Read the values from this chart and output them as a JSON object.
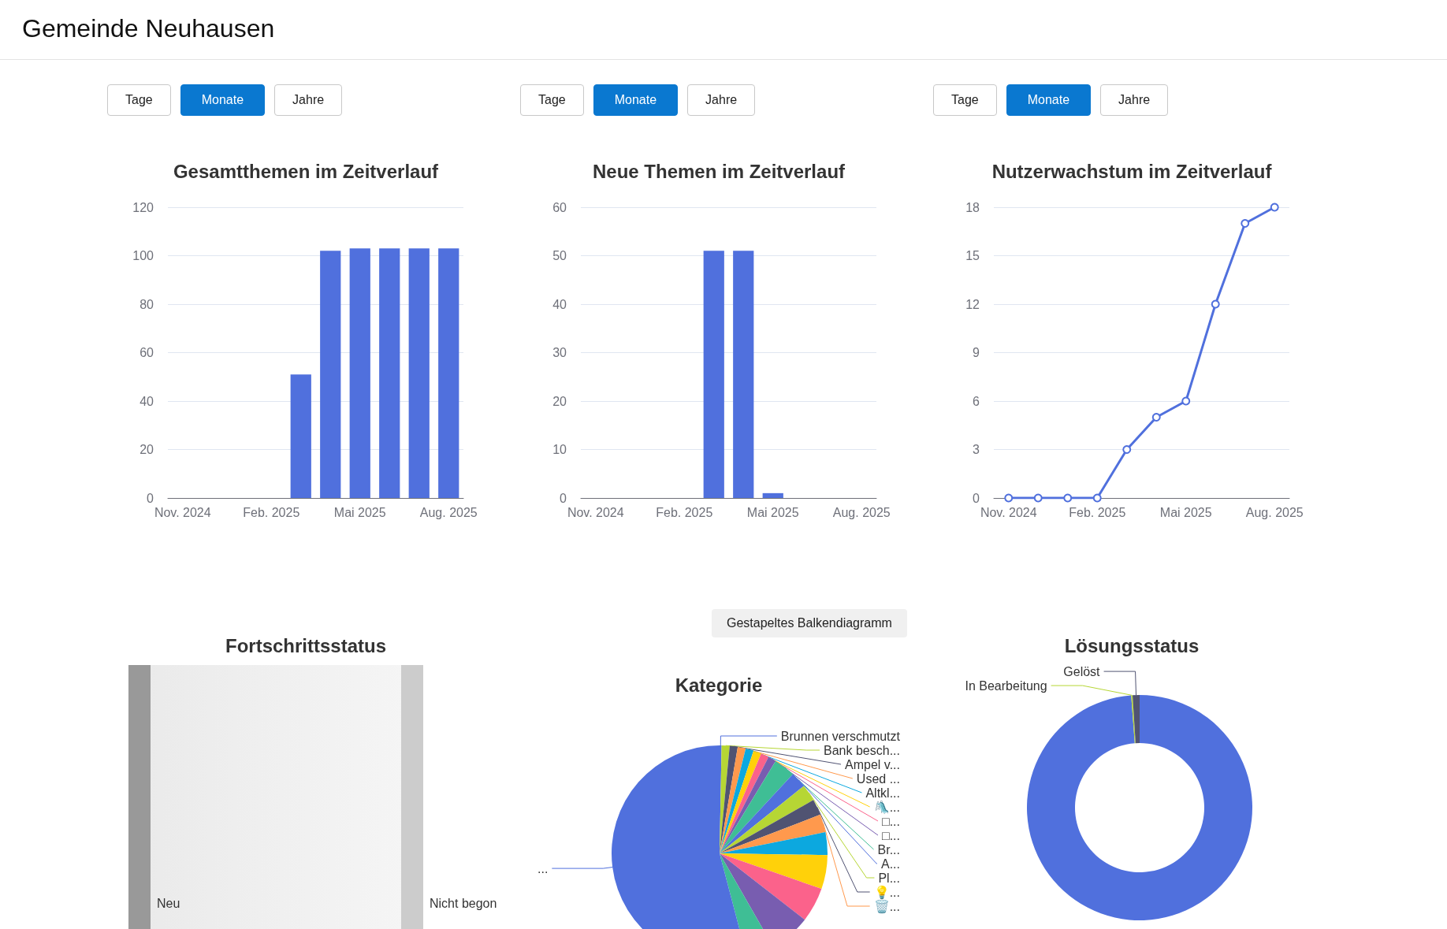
{
  "chart_data": [
    {
      "type": "other",
      "title": "Gemeinde Neuhausen"
    },
    {
      "type": "bar",
      "title": "Gesamtthemen im Zeitverlauf",
      "categories": [
        "Nov. 2024",
        null,
        null,
        "Feb. 2025",
        null,
        null,
        "Mai 2025",
        null,
        null,
        "Aug. 2025"
      ],
      "values": [
        0,
        0,
        0,
        0,
        51,
        102,
        103,
        103,
        103,
        103
      ],
      "color": "#5070dd",
      "ylim": [
        0,
        120
      ],
      "yticks": [
        0,
        20,
        40,
        60,
        80,
        100,
        120
      ],
      "grid": "y",
      "annotations": [
        "Tage",
        "Monate",
        "Jahre"
      ]
    },
    {
      "type": "bar",
      "title": "Neue Themen im Zeitverlauf",
      "categories": [
        "Nov. 2024",
        null,
        null,
        "Feb. 2025",
        null,
        null,
        "Mai 2025",
        null,
        null,
        "Aug. 2025"
      ],
      "values": [
        0,
        0,
        0,
        0,
        51,
        51,
        1,
        0,
        0,
        0
      ],
      "color": "#5070dd",
      "ylim": [
        0,
        60
      ],
      "yticks": [
        0,
        10,
        20,
        30,
        40,
        50,
        60
      ],
      "grid": "y",
      "annotations": [
        "Tage",
        "Monate",
        "Jahre"
      ]
    },
    {
      "type": "line",
      "title": "Nutzerwachstum im Zeitverlauf",
      "categories": [
        "Nov. 2024",
        null,
        null,
        "Feb. 2025",
        null,
        null,
        "Mai 2025",
        null,
        null,
        "Aug. 2025"
      ],
      "values": [
        0,
        0,
        0,
        0,
        3,
        5,
        6,
        12,
        17,
        18
      ],
      "color": "#5070dd",
      "ylim": [
        0,
        18
      ],
      "yticks": [
        0,
        3,
        6,
        9,
        12,
        15,
        18
      ],
      "grid": "y",
      "marker": "circle",
      "annotations": [
        "Tage",
        "Monate",
        "Jahre"
      ]
    },
    {
      "type": "other",
      "title": "Fortschrittsstatus",
      "categories": [
        "Neu",
        "Nicht begon"
      ],
      "colors": [
        "#999999",
        "#cccccc"
      ]
    },
    {
      "type": "pie",
      "title": "Kategorie",
      "categories": [
        "Brunnen verschmutzt",
        "Bank besch...",
        "Ampel v...",
        "Used ...",
        "Altkl...",
        "🛝...",
        "□...",
        "□...",
        "Br...",
        "A...",
        "Pl...",
        "💡...",
        "🗑️...",
        null,
        null,
        null,
        null,
        null,
        "..."
      ],
      "values": [
        0.3,
        1.2,
        1.2,
        1.2,
        1.2,
        1.2,
        1.2,
        1.2,
        3.2,
        2.4,
        2.5,
        2.4,
        2.7,
        3.4,
        5.1,
        5.2,
        6.2,
        4.2,
        54.2
      ],
      "colors": [
        "#5070dd",
        "#b6d634",
        "#505372",
        "#ff994d",
        "#0ca8df",
        "#ffd10a",
        "#fb628b",
        "#785db0",
        "#3fbe95",
        "#5070dd",
        "#b6d634",
        "#505372",
        "#ff994d",
        "#0ca8df",
        "#ffd10a",
        "#fb628b",
        "#785db0",
        "#3fbe95",
        "#5070dd"
      ],
      "annotations": [
        "Gestapeltes Balkendiagramm"
      ]
    },
    {
      "type": "donut",
      "title": "Lösungsstatus",
      "categories": [
        null,
        "In Bearbeitung",
        "Gelöst"
      ],
      "values": [
        98.8,
        0.2,
        1.0
      ],
      "colors": [
        "#5070dd",
        "#b6d634",
        "#505372"
      ]
    }
  ]
}
